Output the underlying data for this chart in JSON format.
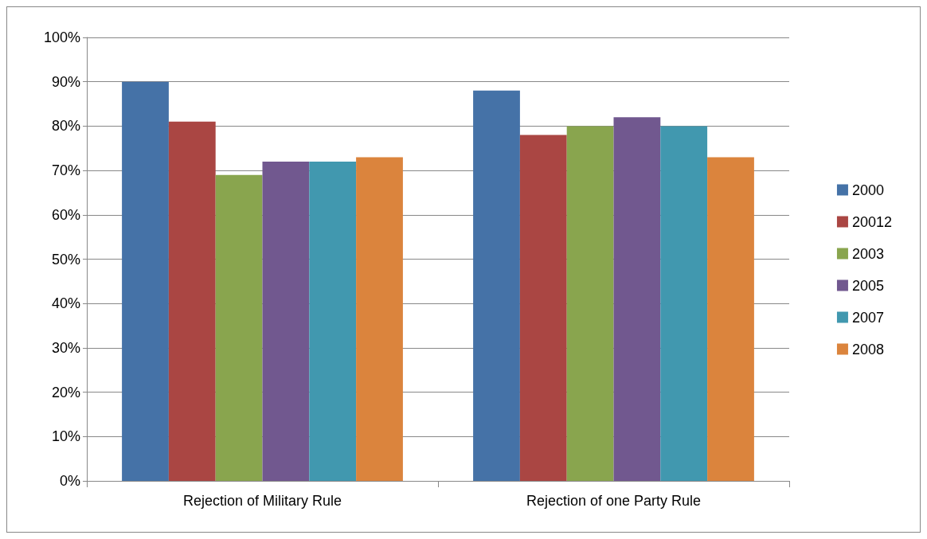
{
  "chart_data": {
    "type": "bar",
    "categories": [
      "Rejection of Military Rule",
      "Rejection of one Party Rule"
    ],
    "series": [
      {
        "name": "2000",
        "color": "#4572a7",
        "values": [
          90,
          88
        ]
      },
      {
        "name": "20012",
        "color": "#aa4643",
        "values": [
          81,
          78
        ]
      },
      {
        "name": "2003",
        "color": "#89a54e",
        "values": [
          69,
          80
        ]
      },
      {
        "name": "2005",
        "color": "#71588f",
        "values": [
          72,
          82
        ]
      },
      {
        "name": "2007",
        "color": "#4198af",
        "values": [
          72,
          80
        ]
      },
      {
        "name": "2008",
        "color": "#db843d",
        "values": [
          73,
          73
        ]
      }
    ],
    "ylim": [
      0,
      100
    ],
    "yticks": [
      {
        "value": 0,
        "label": "0%"
      },
      {
        "value": 10,
        "label": "10%"
      },
      {
        "value": 20,
        "label": "20%"
      },
      {
        "value": 30,
        "label": "30%"
      },
      {
        "value": 40,
        "label": "40%"
      },
      {
        "value": 50,
        "label": "50%"
      },
      {
        "value": 60,
        "label": "60%"
      },
      {
        "value": 70,
        "label": "70%"
      },
      {
        "value": 80,
        "label": "80%"
      },
      {
        "value": 90,
        "label": "90%"
      },
      {
        "value": 100,
        "label": "100%"
      }
    ],
    "grid": "y",
    "legend": "right"
  }
}
